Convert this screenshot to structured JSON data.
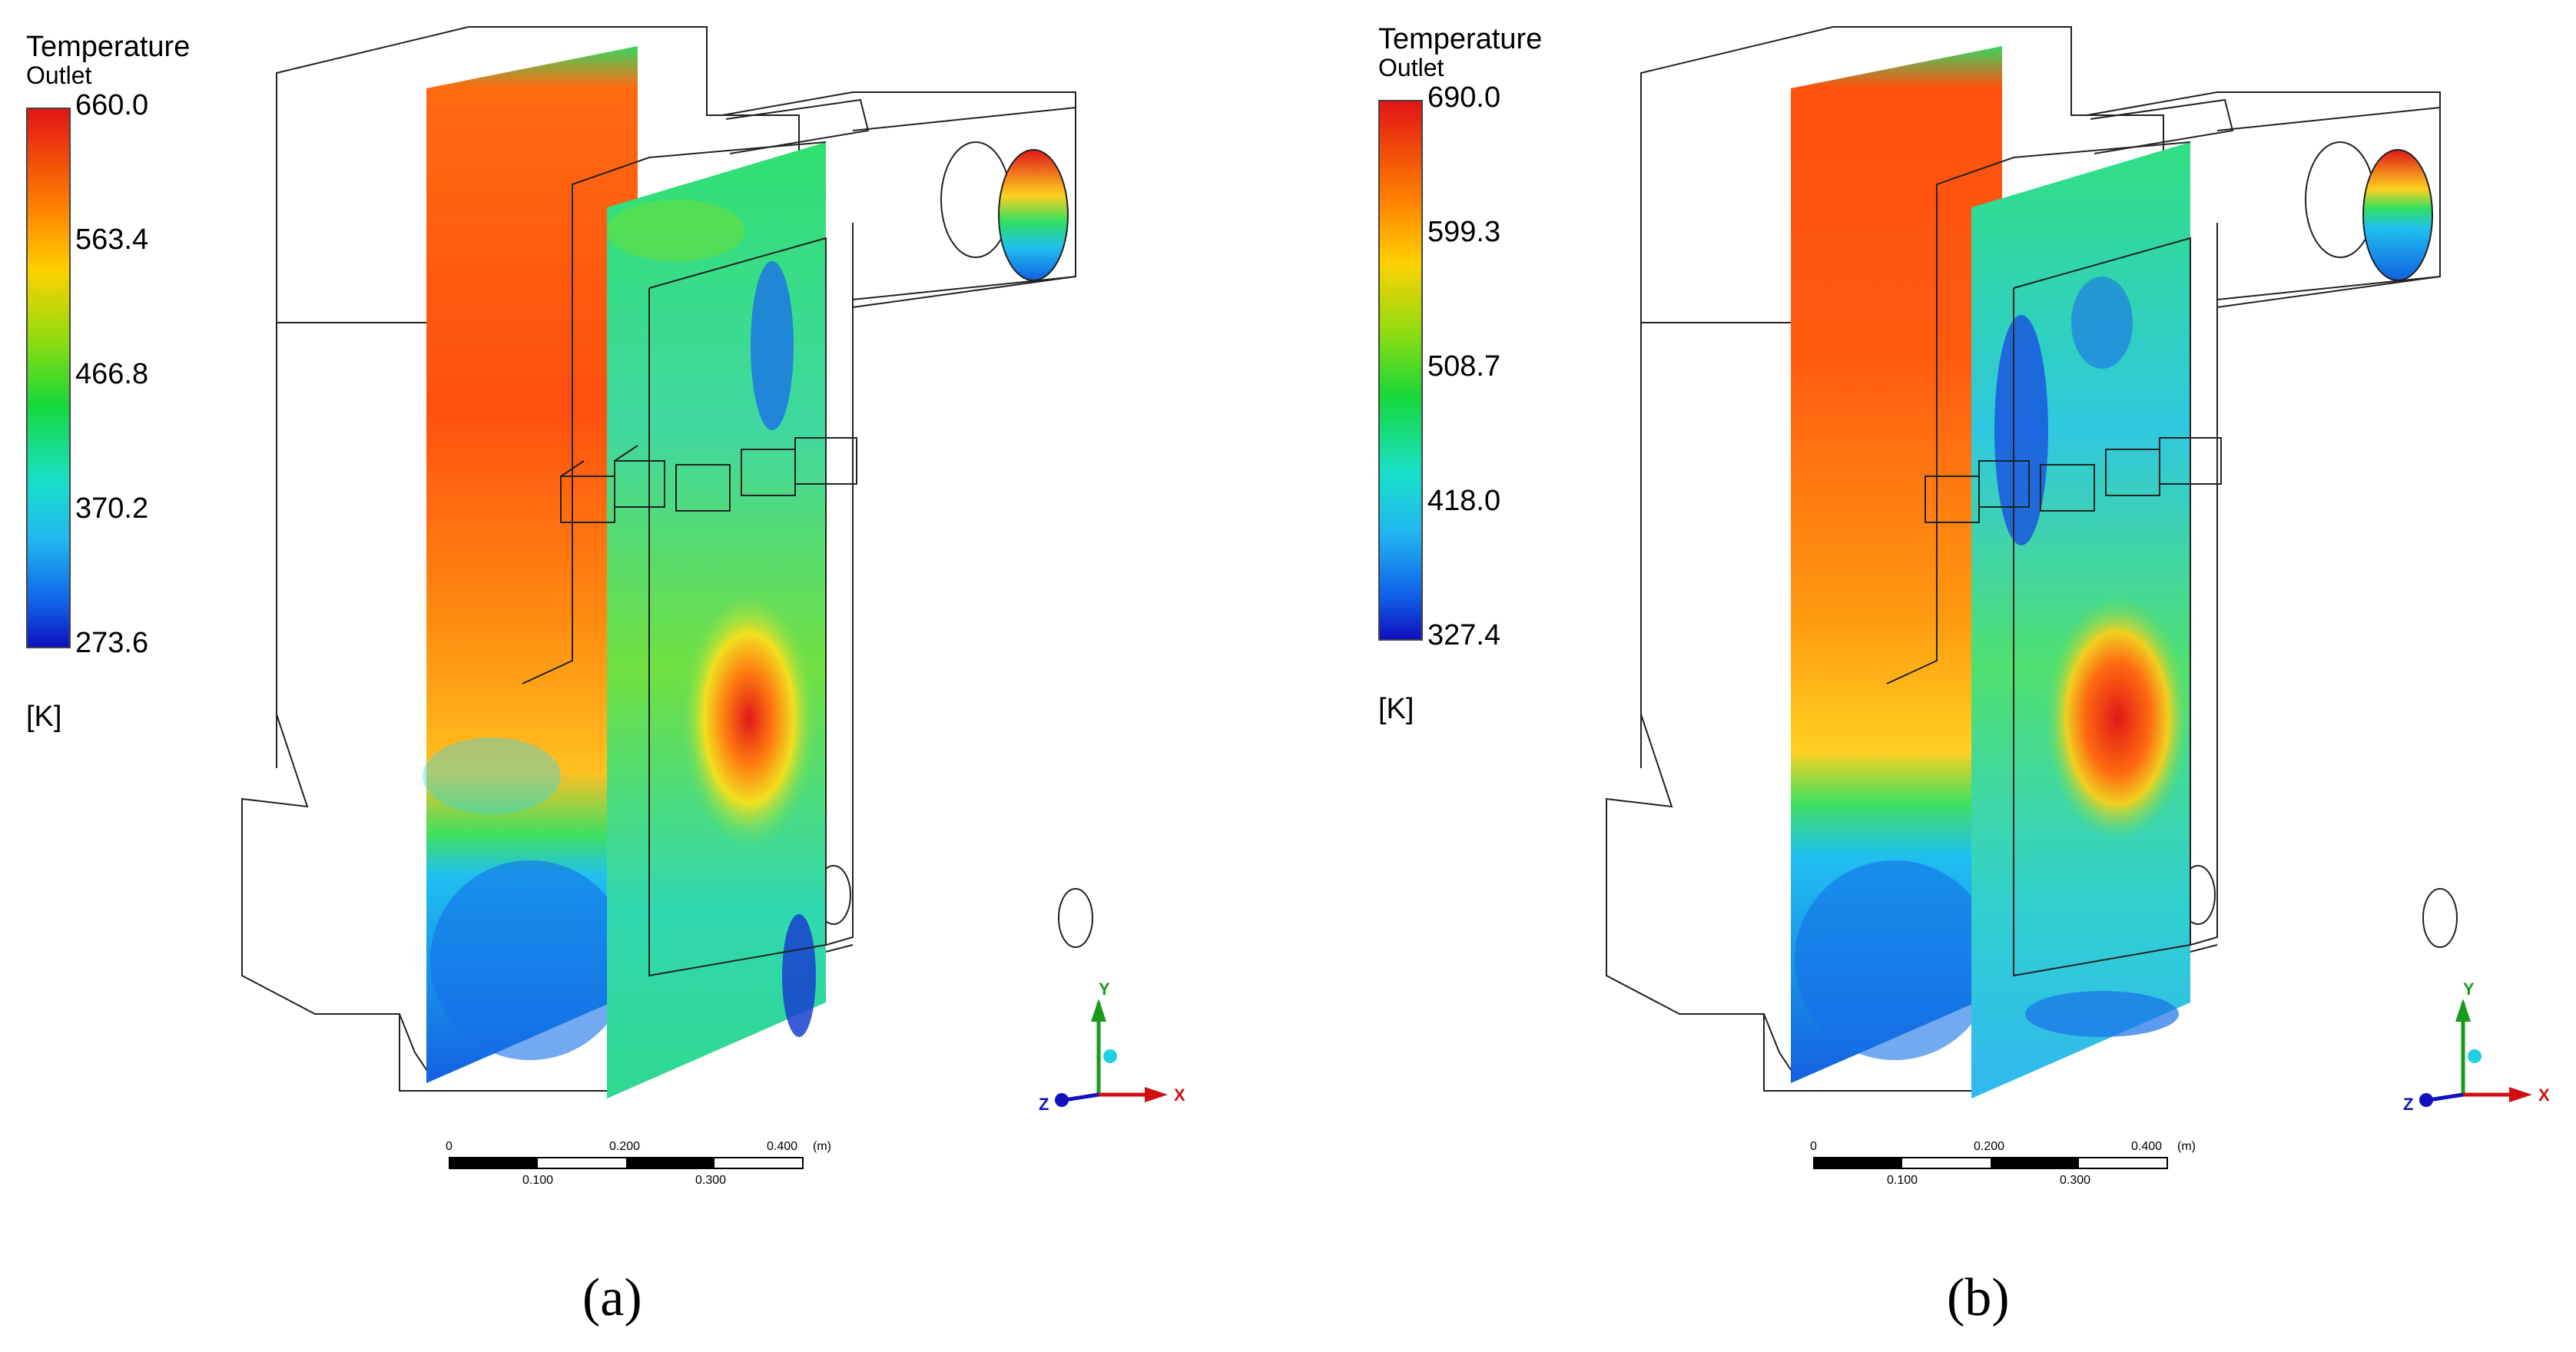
{
  "panels": [
    {
      "legend": {
        "title": "Temperature",
        "subtitle": "Outlet",
        "ticks": [
          "660.0",
          "563.4",
          "466.8",
          "370.2",
          "273.6"
        ],
        "unit": "[K]"
      },
      "scale": {
        "top_labels": [
          "0",
          "0.200",
          "0.400",
          "(m)"
        ],
        "bottom_labels": [
          "0.100",
          "0.300"
        ]
      },
      "triad": {
        "x": "X",
        "y": "Y",
        "z": "Z"
      },
      "caption": "(a)"
    },
    {
      "legend": {
        "title": "Temperature",
        "subtitle": "Outlet",
        "ticks": [
          "690.0",
          "599.3",
          "508.7",
          "418.0",
          "327.4"
        ],
        "unit": "[K]"
      },
      "scale": {
        "top_labels": [
          "0",
          "0.200",
          "0.400",
          "(m)"
        ],
        "bottom_labels": [
          "0.100",
          "0.300"
        ]
      },
      "triad": {
        "x": "X",
        "y": "Y",
        "z": "Z"
      },
      "caption": "(b)"
    }
  ],
  "colors": {
    "hot": "#e21515",
    "warm": "#ff7f00",
    "mid": "#16d83a",
    "cool": "#18e0c8",
    "cold": "#1010c0"
  }
}
